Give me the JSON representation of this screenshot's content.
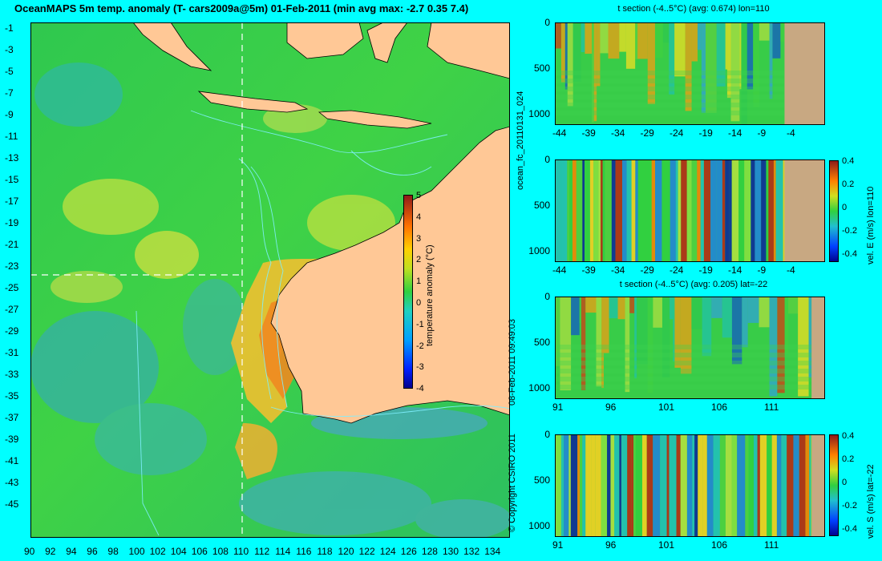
{
  "title": "OceanMAPS 5m temp. anomaly (T- cars2009a@5m) 01-Feb-2011 (min avg max: -2.7 0.35 7.4)",
  "map": {
    "lat_labels": [
      "-1",
      "-3",
      "-5",
      "-7",
      "-9",
      "-11",
      "-13",
      "-15",
      "-17",
      "-19",
      "-21",
      "-23",
      "-25",
      "-27",
      "-29",
      "-31",
      "-33",
      "-35",
      "-37",
      "-39",
      "-41",
      "-43",
      "-45"
    ],
    "lon_labels": [
      "90",
      "92",
      "94",
      "96",
      "98",
      "100",
      "102",
      "104",
      "106",
      "108",
      "110",
      "112",
      "114",
      "116",
      "118",
      "120",
      "122",
      "124",
      "126",
      "128",
      "130",
      "132",
      "134"
    ],
    "colorbar": {
      "label": "temperature anomaly (°C)",
      "ticks": [
        "5",
        "4",
        "3",
        "2",
        "1",
        "0",
        "-1",
        "-2",
        "-3",
        "-4"
      ]
    }
  },
  "side_text": {
    "forecast_id": "ocean_fc_20110131_024",
    "timestamp": "08-Feb-2011 09:49:03",
    "copyright": "© Copyright CSIRO 2011"
  },
  "sections": [
    {
      "title": "t section (-4..5°C) (avg: 0.674) lon=110",
      "depth_ticks": [
        "0",
        "500",
        "1000"
      ],
      "x_ticks": [
        "-44",
        "-39",
        "-34",
        "-29",
        "-24",
        "-19",
        "-14",
        "-9",
        "-4"
      ]
    },
    {
      "title": "",
      "depth_ticks": [
        "0",
        "500",
        "1000"
      ],
      "x_ticks": [
        "-44",
        "-39",
        "-34",
        "-29",
        "-24",
        "-19",
        "-14",
        "-9",
        "-4"
      ],
      "colorbar_label": "vel. E (m/s) lon=110",
      "colorbar_ticks": [
        "0.4",
        "0.2",
        "0",
        "-0.2",
        "-0.4"
      ]
    },
    {
      "title": "t section (-4..5°C) (avg: 0.205) lat=-22",
      "depth_ticks": [
        "0",
        "500",
        "1000"
      ],
      "x_ticks": [
        "91",
        "96",
        "101",
        "106",
        "111"
      ]
    },
    {
      "title": "",
      "depth_ticks": [
        "0",
        "500",
        "1000"
      ],
      "x_ticks": [
        "91",
        "96",
        "101",
        "106",
        "111"
      ],
      "colorbar_label": "vel. S (m/s) lat=-22",
      "colorbar_ticks": [
        "0.4",
        "0.2",
        "0",
        "-0.2",
        "-0.4"
      ]
    }
  ],
  "colors": {
    "background": "#00ffff",
    "land": "#ffc896",
    "ocean_base": "#2ec84a",
    "section_land": "#c8a882"
  }
}
